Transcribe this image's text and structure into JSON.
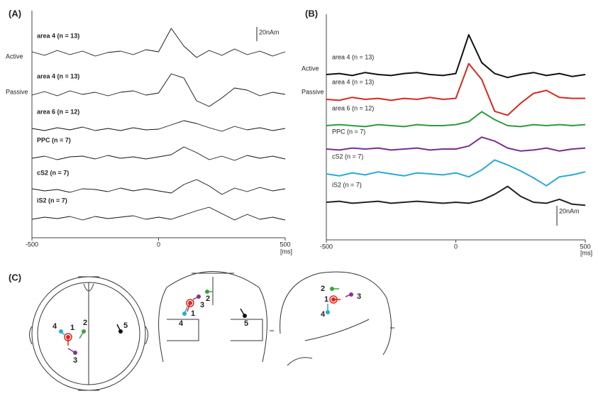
{
  "panel_labels": [
    "(A)",
    "(B)",
    "(C)"
  ],
  "chart_data": [
    {
      "type": "line",
      "xlim": [
        -500,
        500
      ],
      "xticks": [
        -500,
        0,
        500
      ],
      "x_unit": "[ms]",
      "scale_bar": {
        "value": 20,
        "label": "20nAm"
      },
      "annotations": [
        "Active",
        "Passive"
      ],
      "x": [
        -500,
        -450,
        -400,
        -350,
        -300,
        -250,
        -200,
        -150,
        -100,
        -50,
        0,
        50,
        100,
        150,
        200,
        250,
        300,
        350,
        400,
        450,
        500
      ],
      "series": [
        {
          "name": "area 4 (n = 13)",
          "color": "#111111",
          "values": [
            2,
            -3,
            4,
            -2,
            3,
            -4,
            1,
            3,
            -2,
            5,
            2,
            35,
            10,
            -6,
            4,
            -3,
            6,
            -2,
            3,
            -4,
            2
          ]
        },
        {
          "name": "area 4 (n = 13)",
          "color": "#111111",
          "values": [
            -2,
            3,
            -3,
            4,
            -1,
            2,
            -3,
            2,
            4,
            -2,
            1,
            28,
            22,
            -10,
            -18,
            -6,
            8,
            5,
            -3,
            2,
            -1
          ]
        },
        {
          "name": "area 6 (n = 12)",
          "color": "#111111",
          "values": [
            1,
            -2,
            2,
            -1,
            3,
            -2,
            1,
            -2,
            2,
            -1,
            0,
            6,
            12,
            8,
            2,
            -3,
            4,
            -1,
            2,
            -2,
            1
          ]
        },
        {
          "name": "PPC (n = 7)",
          "color": "#111111",
          "values": [
            -1,
            2,
            -3,
            1,
            2,
            -2,
            3,
            -1,
            1,
            -2,
            1,
            4,
            15,
            7,
            -3,
            2,
            -4,
            3,
            -1,
            2,
            -2
          ]
        },
        {
          "name": "cS2 (n = 7)",
          "color": "#111111",
          "values": [
            2,
            -1,
            1,
            -3,
            2,
            1,
            -2,
            3,
            -1,
            2,
            -1,
            -4,
            8,
            15,
            6,
            -6,
            3,
            -2,
            4,
            -1,
            2
          ]
        },
        {
          "name": "iS2 (n = 7)",
          "color": "#111111",
          "values": [
            -2,
            1,
            -1,
            2,
            -3,
            2,
            -1,
            1,
            3,
            -2,
            1,
            -2,
            4,
            10,
            15,
            6,
            -3,
            5,
            -2,
            1,
            -3
          ]
        }
      ]
    },
    {
      "type": "line",
      "xlim": [
        -500,
        500
      ],
      "xticks": [
        -500,
        0,
        500
      ],
      "x_unit": "[ms]",
      "scale_bar": {
        "value": 20,
        "label": "20nAm"
      },
      "annotations": [
        "Active",
        "Passive"
      ],
      "x": [
        -500,
        -450,
        -400,
        -350,
        -300,
        -250,
        -200,
        -150,
        -100,
        -50,
        0,
        50,
        100,
        150,
        200,
        250,
        300,
        350,
        400,
        450,
        500
      ],
      "series": [
        {
          "name": "area 4 (n = 13)",
          "color": "#111111",
          "values": [
            0,
            1,
            -1,
            2,
            0,
            -1,
            1,
            2,
            0,
            -1,
            1,
            40,
            12,
            1,
            -3,
            0,
            2,
            -1,
            1,
            -2,
            0
          ]
        },
        {
          "name": "area 4 (n = 13)",
          "color": "#d42a20",
          "values": [
            0,
            -1,
            2,
            0,
            1,
            -1,
            1,
            0,
            2,
            0,
            1,
            36,
            20,
            -12,
            -16,
            -4,
            6,
            9,
            2,
            1,
            1
          ]
        },
        {
          "name": "area 6 (n = 12)",
          "color": "#2f9b3a",
          "values": [
            0,
            1,
            0,
            -1,
            1,
            0,
            -1,
            1,
            0,
            0,
            1,
            4,
            14,
            6,
            0,
            -1,
            1,
            0,
            1,
            0,
            1
          ]
        },
        {
          "name": "PPC (n = 7)",
          "color": "#7b2d8f",
          "values": [
            0,
            -1,
            1,
            0,
            1,
            -1,
            0,
            1,
            -1,
            0,
            0,
            3,
            12,
            8,
            1,
            -2,
            -1,
            1,
            -2,
            0,
            1
          ]
        },
        {
          "name": "cS2 (n = 7)",
          "color": "#2aa8d8",
          "values": [
            0,
            -2,
            1,
            -1,
            2,
            0,
            -2,
            1,
            0,
            -1,
            1,
            -3,
            4,
            14,
            9,
            3,
            -4,
            -12,
            -3,
            -1,
            2
          ]
        },
        {
          "name": "iS2 (n = 7)",
          "color": "#222222",
          "values": [
            0,
            1,
            -1,
            0,
            1,
            -1,
            0,
            1,
            0,
            -1,
            0,
            -1,
            2,
            8,
            16,
            6,
            0,
            -1,
            3,
            -2,
            -3
          ]
        }
      ]
    }
  ],
  "diagram": {
    "views": [
      {
        "dipoles": [
          {
            "label": "1",
            "color": "#e2231a"
          },
          {
            "label": "2",
            "color": "#3aa53a"
          },
          {
            "label": "3",
            "color": "#8e2f93"
          },
          {
            "label": "4",
            "color": "#29a9d6"
          },
          {
            "label": "5",
            "color": "#111111"
          }
        ]
      },
      {
        "dipoles": [
          {
            "label": "1",
            "color": "#e2231a"
          },
          {
            "label": "2",
            "color": "#3aa53a"
          },
          {
            "label": "3",
            "color": "#8e2f93"
          },
          {
            "label": "4",
            "color": "#29a9d6"
          },
          {
            "label": "5",
            "color": "#111111"
          }
        ]
      },
      {
        "dipoles": [
          {
            "label": "1",
            "color": "#e2231a"
          },
          {
            "label": "2",
            "color": "#3aa53a"
          },
          {
            "label": "3",
            "color": "#8e2f93"
          },
          {
            "label": "4",
            "color": "#29a9d6"
          }
        ]
      }
    ]
  }
}
